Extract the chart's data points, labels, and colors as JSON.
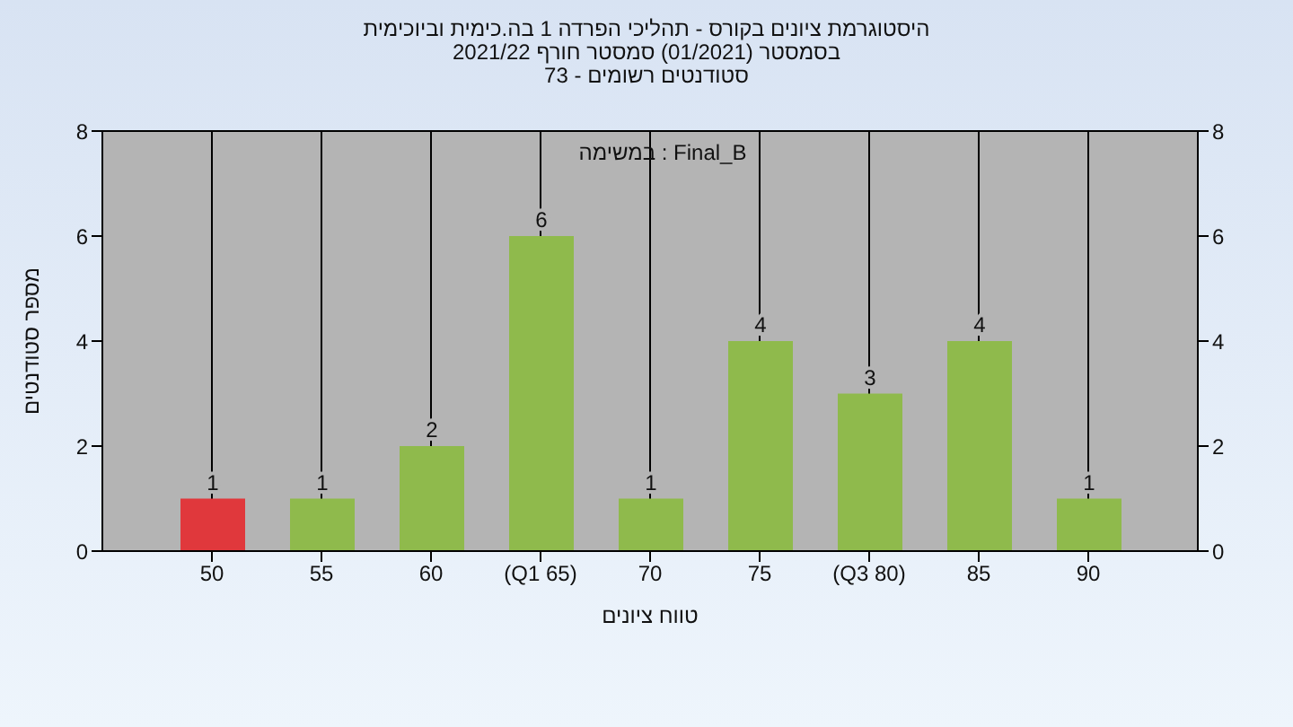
{
  "chart_data": {
    "type": "bar",
    "title": "היסטוגרמת ציונים בקורס - תהליכי הפרדה 1 בה.כימית וביוכימית",
    "subtitle": "בסמסטר (01/2021) סמסטר חורף 2021/22\nסטודנטים רשומים - 73",
    "xlabel": "טווח ציונים",
    "ylabel": "מספר סטודנטים",
    "annotations": [
      "במשימה : Final_B"
    ],
    "categories": [
      "50",
      "55",
      "60",
      "(Q1 65)",
      "70",
      "75",
      "(Q3 80)",
      "85",
      "90"
    ],
    "values": [
      1,
      1,
      2,
      6,
      1,
      4,
      3,
      4,
      1
    ],
    "colors": [
      "#e0383c",
      "#8fba4c",
      "#8fba4c",
      "#8fba4c",
      "#8fba4c",
      "#8fba4c",
      "#8fba4c",
      "#8fba4c",
      "#8fba4c"
    ],
    "ylim": [
      0,
      8
    ],
    "yticks": [
      0,
      2,
      4,
      6,
      8
    ],
    "y2lim": [
      0,
      8
    ],
    "y2ticks": [
      0,
      2,
      4,
      6,
      8
    ],
    "grid": true,
    "data_labels": true
  }
}
